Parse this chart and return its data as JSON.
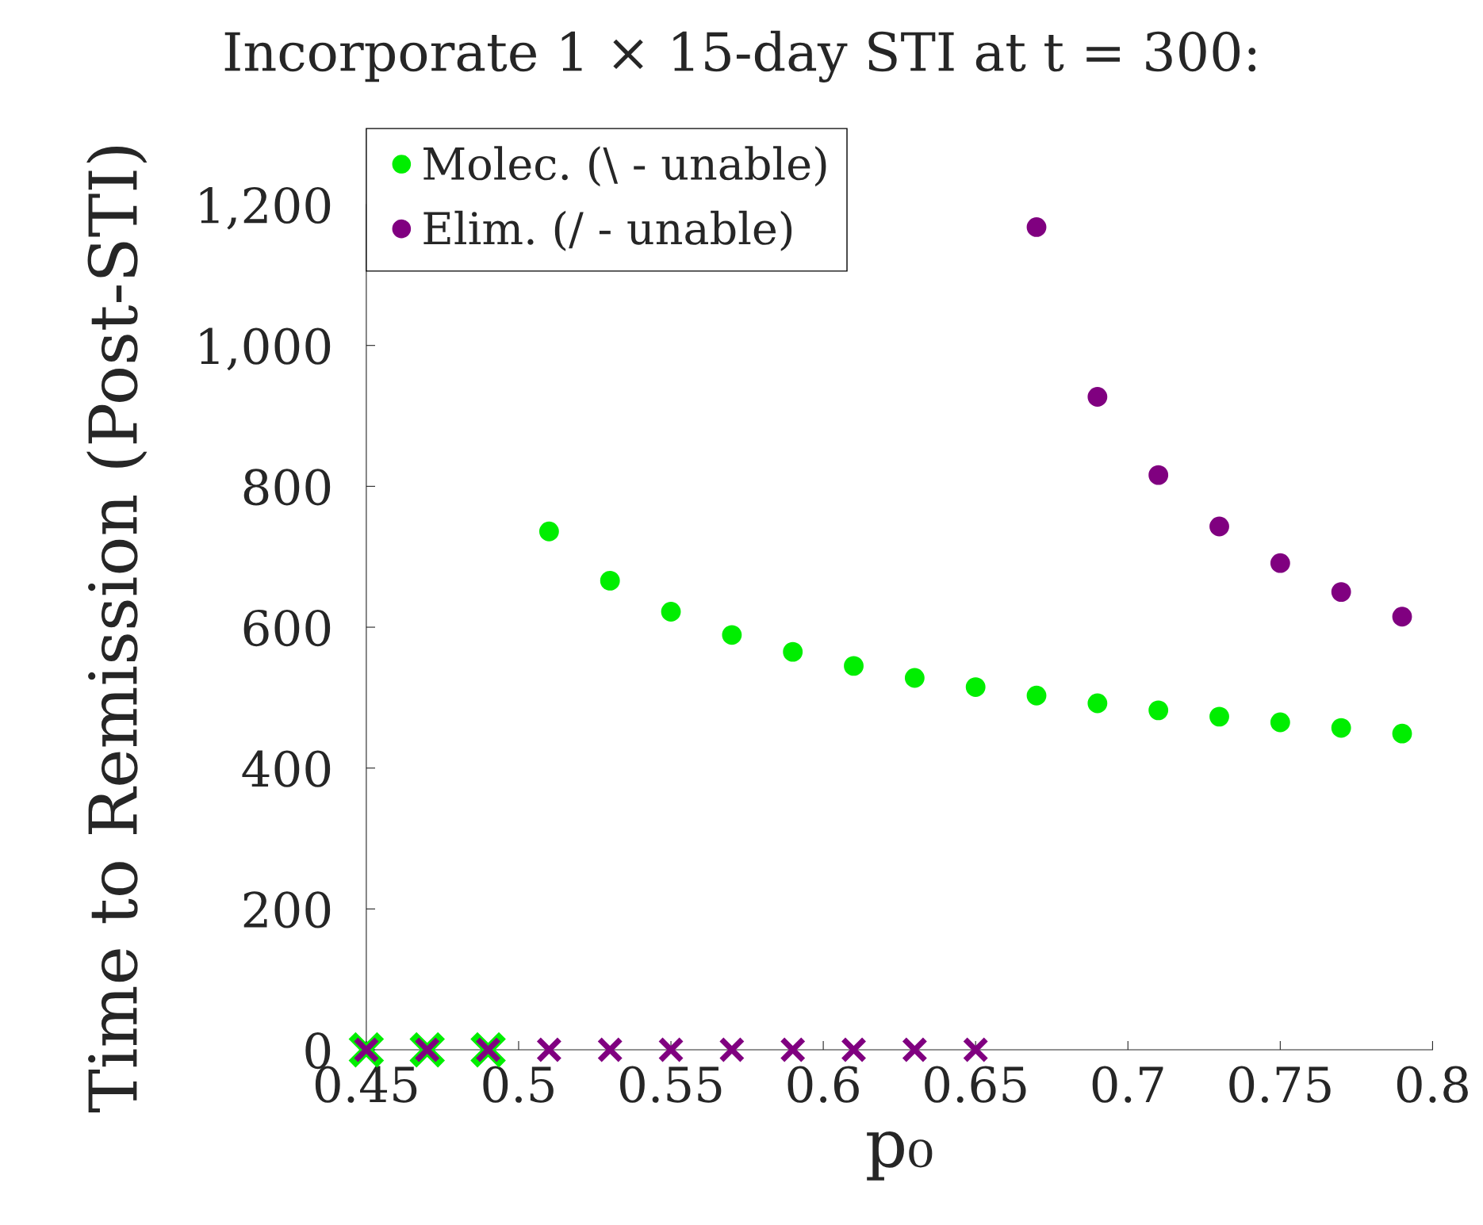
{
  "chart_data": {
    "type": "scatter",
    "title": "Incorporate 1 × 15-day STI at t = 300:",
    "xlabel": "p₀",
    "ylabel": "Time to Remission (Post-STI)",
    "xlim": [
      0.45,
      0.8
    ],
    "xticks": [
      0.45,
      0.5,
      0.55,
      0.6,
      0.65,
      0.7,
      0.75,
      0.8
    ],
    "ylim": [
      0,
      1200
    ],
    "yticks": [
      0,
      200,
      400,
      600,
      800,
      {
        "value": 1000,
        "label": "1,000"
      },
      {
        "value": 1200,
        "label": "1,200"
      }
    ],
    "legend": "top left",
    "grid": false,
    "series": [
      {
        "name": "Molec. (\\ - unable)",
        "color": "#00ee00",
        "marker": "circle",
        "x": [
          0.51,
          0.53,
          0.55,
          0.57,
          0.59,
          0.61,
          0.63,
          0.65,
          0.67,
          0.69,
          0.71,
          0.73,
          0.75,
          0.77,
          0.79
        ],
        "values": [
          736,
          666,
          622,
          589,
          565,
          545,
          528,
          515,
          503,
          492,
          482,
          473,
          465,
          457,
          449
        ]
      },
      {
        "name": "Elim. (/ - unable)",
        "color": "#800080",
        "marker": "circle",
        "x": [
          0.67,
          0.69,
          0.71,
          0.73,
          0.75,
          0.77,
          0.79
        ],
        "values": [
          1168,
          927,
          816,
          743,
          691,
          650,
          615
        ]
      },
      {
        "color": "#00ee00",
        "marker": "cross",
        "x": [
          0.45,
          0.47,
          0.49
        ],
        "values": [
          0,
          0,
          0
        ]
      },
      {
        "color": "#800080",
        "marker": "cross",
        "x": [
          0.45,
          0.47,
          0.49,
          0.51,
          0.53,
          0.55,
          0.57,
          0.59,
          0.61,
          0.63,
          0.65
        ],
        "values": [
          0,
          0,
          0,
          0,
          0,
          0,
          0,
          0,
          0,
          0,
          0
        ]
      }
    ]
  }
}
